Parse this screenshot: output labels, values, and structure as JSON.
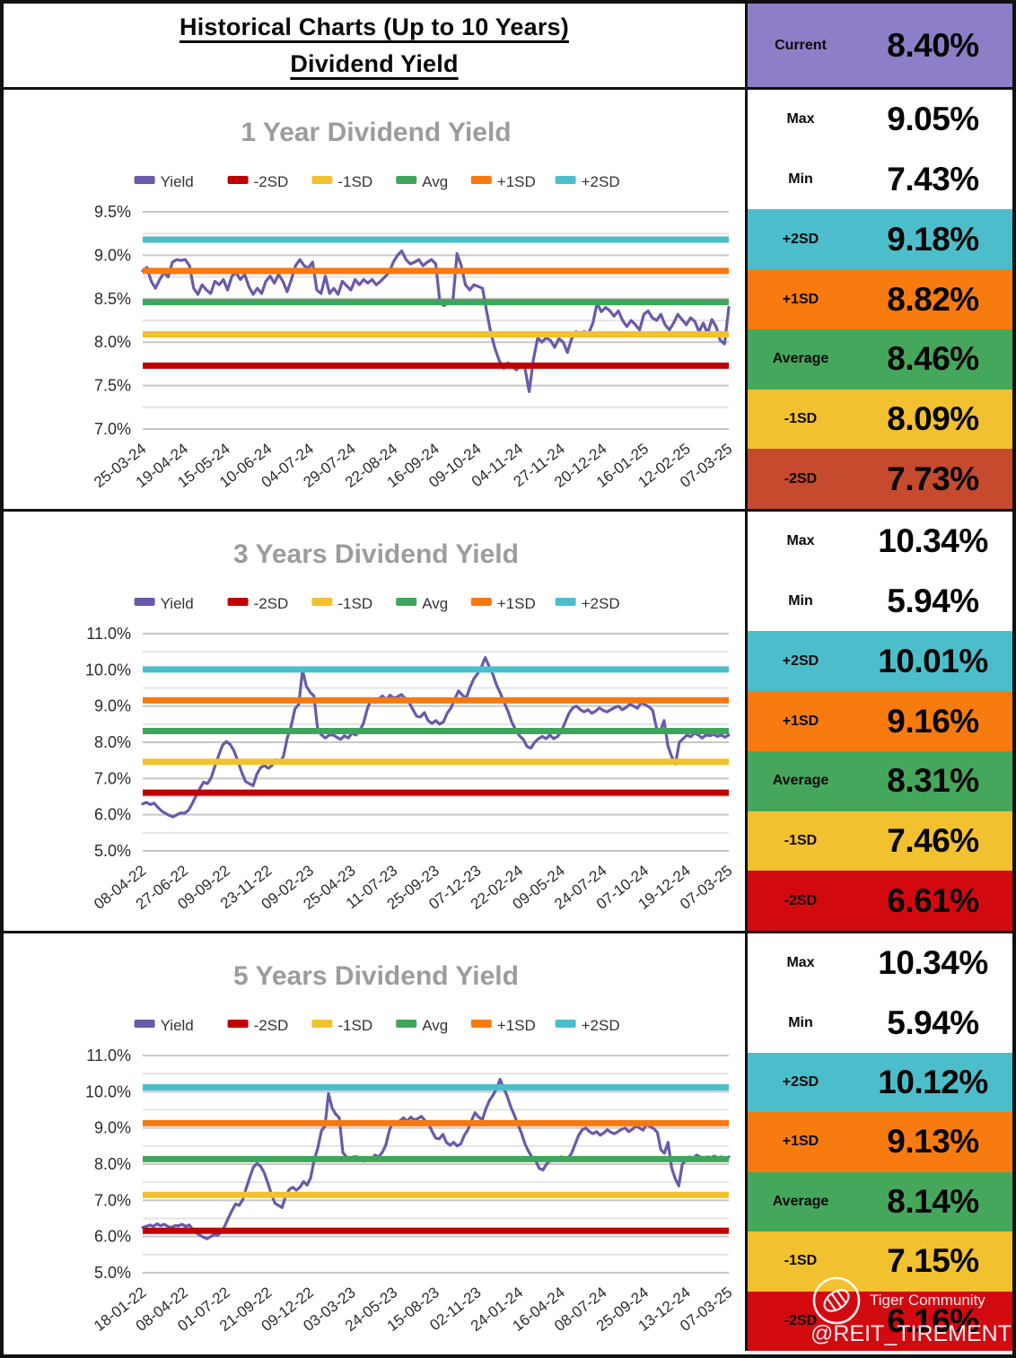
{
  "header": {
    "title_line1": "Historical Charts (Up to 10 Years)",
    "title_line2": "Dividend Yield",
    "current_label": "Current",
    "current_value": "8.40%"
  },
  "colors": {
    "current_bg": "#8D7EC7",
    "yield_line": "#6B59A9",
    "minus2sd_line": "#C00000",
    "minus1sd_line": "#F2C12F",
    "avg_line": "#3FA55B",
    "plus1sd_line": "#F7790F",
    "plus2sd_line": "#4CBECB",
    "box_plus2sd": "#4CBECB",
    "box_plus1sd": "#F87B10",
    "box_avg": "#45A75C",
    "box_minus1sd": "#F2C12F",
    "box_minus2sd_brick": "#C54A2E",
    "box_minus2sd_red": "#D20A10",
    "chart_title": "#9C9C9C",
    "grid_major": "#C7C7C7",
    "grid_minor": "#E4E4E4",
    "axis_text": "#2b2b2b"
  },
  "chart_data": [
    {
      "type": "line",
      "title": "1 Year Dividend Yield",
      "series_name": "Yield",
      "legend": [
        "Yield",
        "-2SD",
        "-1SD",
        "Avg",
        "+1SD",
        "+2SD"
      ],
      "legend_colors": [
        "#6B59A9",
        "#C00000",
        "#F2C12F",
        "#3FA55B",
        "#F7790F",
        "#4CBECB"
      ],
      "ylim": [
        7.0,
        9.5
      ],
      "ytick_labels": [
        "9.5%",
        "9.0%",
        "8.5%",
        "8.0%",
        "7.5%",
        "7.0%"
      ],
      "ytick_values": [
        9.5,
        9.0,
        8.5,
        8.0,
        7.5,
        7.0
      ],
      "x_labels": [
        "25-03-24",
        "19-04-24",
        "15-05-24",
        "10-06-24",
        "04-07-24",
        "29-07-24",
        "22-08-24",
        "16-09-24",
        "09-10-24",
        "04-11-24",
        "27-11-24",
        "20-12-24",
        "16-01-25",
        "12-02-25",
        "07-03-25"
      ],
      "ref_lines": {
        "minus2sd": 7.73,
        "minus1sd": 8.09,
        "avg": 8.46,
        "plus1sd": 8.82,
        "plus2sd": 9.18
      },
      "values": [
        8.82,
        8.86,
        8.7,
        8.62,
        8.72,
        8.8,
        8.75,
        8.92,
        8.95,
        8.94,
        8.95,
        8.88,
        8.62,
        8.55,
        8.66,
        8.6,
        8.56,
        8.7,
        8.66,
        8.72,
        8.6,
        8.76,
        8.8,
        8.72,
        8.78,
        8.64,
        8.55,
        8.62,
        8.56,
        8.7,
        8.76,
        8.68,
        8.78,
        8.7,
        8.58,
        8.72,
        8.88,
        8.95,
        8.88,
        8.85,
        8.92,
        8.6,
        8.56,
        8.76,
        8.56,
        8.62,
        8.55,
        8.7,
        8.65,
        8.6,
        8.72,
        8.66,
        8.72,
        8.68,
        8.72,
        8.66,
        8.7,
        8.75,
        8.8,
        8.92,
        9.0,
        9.05,
        8.95,
        8.9,
        8.92,
        8.95,
        8.88,
        8.92,
        8.95,
        8.9,
        8.45,
        8.42,
        8.48,
        8.45,
        9.02,
        8.88,
        8.66,
        8.6,
        8.66,
        8.64,
        8.62,
        8.35,
        8.1,
        7.92,
        7.78,
        7.7,
        7.76,
        7.72,
        7.68,
        7.74,
        7.7,
        7.43,
        7.8,
        8.05,
        8.0,
        8.05,
        8.02,
        7.94,
        8.04,
        8.0,
        7.88,
        8.04,
        8.12,
        8.1,
        8.12,
        8.1,
        8.22,
        8.45,
        8.35,
        8.4,
        8.36,
        8.3,
        8.36,
        8.25,
        8.18,
        8.25,
        8.2,
        8.14,
        8.32,
        8.36,
        8.28,
        8.25,
        8.32,
        8.2,
        8.14,
        8.22,
        8.32,
        8.26,
        8.2,
        8.28,
        8.24,
        8.12,
        8.22,
        8.1,
        8.26,
        8.18,
        8.02,
        7.98,
        8.4
      ]
    },
    {
      "type": "line",
      "title": "3 Years Dividend Yield",
      "series_name": "Yield",
      "legend": [
        "Yield",
        "-2SD",
        "-1SD",
        "Avg",
        "+1SD",
        "+2SD"
      ],
      "legend_colors": [
        "#6B59A9",
        "#C00000",
        "#F2C12F",
        "#3FA55B",
        "#F7790F",
        "#4CBECB"
      ],
      "ylim": [
        5.0,
        11.0
      ],
      "ytick_labels": [
        "11.0%",
        "10.0%",
        "9.0%",
        "8.0%",
        "7.0%",
        "6.0%",
        "5.0%"
      ],
      "ytick_values": [
        11.0,
        10.0,
        9.0,
        8.0,
        7.0,
        6.0,
        5.0
      ],
      "x_labels": [
        "08-04-22",
        "27-06-22",
        "09-09-22",
        "23-11-22",
        "09-02-23",
        "25-04-23",
        "11-07-23",
        "25-09-23",
        "07-12-23",
        "22-02-24",
        "09-05-24",
        "24-07-24",
        "07-10-24",
        "19-12-24",
        "07-03-25"
      ],
      "ref_lines": {
        "minus2sd": 6.61,
        "minus1sd": 7.46,
        "avg": 8.31,
        "plus1sd": 9.16,
        "plus2sd": 10.01
      },
      "values": [
        6.3,
        6.34,
        6.28,
        6.32,
        6.2,
        6.1,
        6.04,
        5.98,
        5.94,
        6.0,
        6.05,
        6.04,
        6.12,
        6.3,
        6.52,
        6.72,
        6.9,
        6.86,
        7.02,
        7.35,
        7.65,
        7.92,
        8.02,
        7.94,
        7.76,
        7.48,
        7.18,
        6.92,
        6.86,
        6.8,
        7.12,
        7.3,
        7.36,
        7.28,
        7.36,
        7.52,
        7.42,
        7.62,
        8.12,
        8.45,
        8.92,
        9.05,
        10.0,
        9.55,
        9.38,
        9.28,
        8.32,
        8.2,
        8.12,
        8.2,
        8.2,
        8.14,
        8.08,
        8.18,
        8.12,
        8.25,
        8.2,
        8.32,
        8.52,
        8.92,
        9.18,
        9.1,
        9.2,
        9.28,
        9.18,
        9.3,
        9.22,
        9.26,
        9.32,
        9.2,
        9.1,
        8.9,
        8.72,
        8.7,
        8.82,
        8.6,
        8.52,
        8.6,
        8.5,
        8.56,
        8.8,
        8.95,
        9.2,
        9.42,
        9.3,
        9.22,
        9.52,
        9.75,
        9.9,
        10.08,
        10.34,
        10.1,
        9.88,
        9.58,
        9.35,
        9.1,
        8.85,
        8.55,
        8.35,
        8.18,
        8.08,
        7.88,
        7.84,
        8.0,
        8.1,
        8.16,
        8.1,
        8.2,
        8.1,
        8.16,
        8.3,
        8.55,
        8.8,
        8.95,
        9.0,
        8.9,
        8.84,
        8.9,
        8.8,
        8.86,
        8.95,
        8.88,
        8.84,
        8.9,
        8.96,
        9.0,
        8.9,
        8.96,
        9.05,
        9.0,
        8.94,
        9.1,
        9.04,
        8.98,
        8.88,
        8.4,
        8.3,
        8.6,
        7.9,
        7.6,
        7.4,
        8.0,
        8.1,
        8.2,
        8.15,
        8.25,
        8.2,
        8.12,
        8.2,
        8.18,
        8.22,
        8.16,
        8.2,
        8.14,
        8.2
      ]
    },
    {
      "type": "line",
      "title": "5 Years Dividend Yield",
      "series_name": "Yield",
      "legend": [
        "Yield",
        "-2SD",
        "-1SD",
        "Avg",
        "+1SD",
        "+2SD"
      ],
      "legend_colors": [
        "#6B59A9",
        "#C00000",
        "#F2C12F",
        "#3FA55B",
        "#F7790F",
        "#4CBECB"
      ],
      "ylim": [
        5.0,
        11.0
      ],
      "ytick_labels": [
        "11.0%",
        "10.0%",
        "9.0%",
        "8.0%",
        "7.0%",
        "6.0%",
        "5.0%"
      ],
      "ytick_values": [
        11.0,
        10.0,
        9.0,
        8.0,
        7.0,
        6.0,
        5.0
      ],
      "x_labels": [
        "18-01-22",
        "08-04-22",
        "01-07-22",
        "21-09-22",
        "09-12-22",
        "03-03-23",
        "24-05-23",
        "15-08-23",
        "02-11-23",
        "24-01-24",
        "16-04-24",
        "08-07-24",
        "25-09-24",
        "13-12-24",
        "07-03-25"
      ],
      "ref_lines": {
        "minus2sd": 6.16,
        "minus1sd": 7.15,
        "avg": 8.14,
        "plus1sd": 9.13,
        "plus2sd": 10.12
      },
      "values": [
        6.25,
        6.28,
        6.32,
        6.28,
        6.35,
        6.3,
        6.34,
        6.28,
        6.25,
        6.3,
        6.3,
        6.34,
        6.28,
        6.32,
        6.2,
        6.1,
        6.04,
        5.98,
        5.94,
        6.0,
        6.05,
        6.04,
        6.12,
        6.3,
        6.52,
        6.72,
        6.9,
        6.86,
        7.02,
        7.35,
        7.65,
        7.92,
        8.02,
        7.94,
        7.76,
        7.48,
        7.18,
        6.92,
        6.86,
        6.8,
        7.12,
        7.3,
        7.36,
        7.28,
        7.36,
        7.52,
        7.42,
        7.62,
        8.12,
        8.45,
        8.92,
        9.05,
        9.95,
        9.55,
        9.38,
        9.28,
        8.32,
        8.2,
        8.12,
        8.2,
        8.2,
        8.14,
        8.08,
        8.18,
        8.12,
        8.25,
        8.2,
        8.32,
        8.52,
        8.92,
        9.18,
        9.1,
        9.2,
        9.28,
        9.18,
        9.3,
        9.22,
        9.26,
        9.32,
        9.2,
        9.1,
        8.9,
        8.72,
        8.7,
        8.82,
        8.6,
        8.52,
        8.6,
        8.5,
        8.56,
        8.8,
        8.95,
        9.2,
        9.42,
        9.3,
        9.22,
        9.52,
        9.75,
        9.9,
        10.08,
        10.34,
        10.1,
        9.88,
        9.58,
        9.35,
        9.1,
        8.85,
        8.55,
        8.35,
        8.18,
        8.08,
        7.88,
        7.84,
        8.0,
        8.1,
        8.16,
        8.1,
        8.2,
        8.1,
        8.16,
        8.3,
        8.55,
        8.8,
        8.95,
        9.0,
        8.9,
        8.84,
        8.9,
        8.8,
        8.86,
        8.95,
        8.88,
        8.84,
        8.9,
        8.96,
        9.0,
        8.9,
        8.96,
        9.05,
        9.0,
        8.94,
        9.1,
        9.04,
        8.98,
        8.88,
        8.4,
        8.3,
        8.6,
        7.9,
        7.6,
        7.4,
        8.0,
        8.1,
        8.2,
        8.15,
        8.25,
        8.2,
        8.12,
        8.2,
        8.18,
        8.22,
        8.16,
        8.2,
        8.14,
        8.2
      ]
    }
  ],
  "sections": [
    {
      "stats": [
        {
          "key": "max",
          "label": "Max",
          "value": "9.05%",
          "bg": "#FFFFFF"
        },
        {
          "key": "min",
          "label": "Min",
          "value": "7.43%",
          "bg": "#FFFFFF"
        },
        {
          "key": "plus2sd",
          "label": "+2SD",
          "value": "9.18%",
          "bg": "#4CBECB"
        },
        {
          "key": "plus1sd",
          "label": "+1SD",
          "value": "8.82%",
          "bg": "#F87B10"
        },
        {
          "key": "average",
          "label": "Average",
          "value": "8.46%",
          "bg": "#45A75C"
        },
        {
          "key": "minus1sd",
          "label": "-1SD",
          "value": "8.09%",
          "bg": "#F2C12F"
        },
        {
          "key": "minus2sd",
          "label": "-2SD",
          "value": "7.73%",
          "bg": "#C54A2E"
        }
      ]
    },
    {
      "stats": [
        {
          "key": "max",
          "label": "Max",
          "value": "10.34%",
          "bg": "#FFFFFF"
        },
        {
          "key": "min",
          "label": "Min",
          "value": "5.94%",
          "bg": "#FFFFFF"
        },
        {
          "key": "plus2sd",
          "label": "+2SD",
          "value": "10.01%",
          "bg": "#4CBECB"
        },
        {
          "key": "plus1sd",
          "label": "+1SD",
          "value": "9.16%",
          "bg": "#F87B10"
        },
        {
          "key": "average",
          "label": "Average",
          "value": "8.31%",
          "bg": "#45A75C"
        },
        {
          "key": "minus1sd",
          "label": "-1SD",
          "value": "7.46%",
          "bg": "#F2C12F"
        },
        {
          "key": "minus2sd",
          "label": "-2SD",
          "value": "6.61%",
          "bg": "#D20A10"
        }
      ]
    },
    {
      "stats": [
        {
          "key": "max",
          "label": "Max",
          "value": "10.34%",
          "bg": "#FFFFFF"
        },
        {
          "key": "min",
          "label": "Min",
          "value": "5.94%",
          "bg": "#FFFFFF"
        },
        {
          "key": "plus2sd",
          "label": "+2SD",
          "value": "10.12%",
          "bg": "#4CBECB"
        },
        {
          "key": "plus1sd",
          "label": "+1SD",
          "value": "9.13%",
          "bg": "#F87B10"
        },
        {
          "key": "average",
          "label": "Average",
          "value": "8.14%",
          "bg": "#45A75C"
        },
        {
          "key": "minus1sd",
          "label": "-1SD",
          "value": "7.15%",
          "bg": "#F2C12F"
        },
        {
          "key": "minus2sd",
          "label": "-2SD",
          "value": "6.16%",
          "bg": "#D20A10"
        }
      ]
    }
  ],
  "watermark": {
    "brand": "Tiger Community",
    "handle": "@REIT_TIREMENT"
  }
}
